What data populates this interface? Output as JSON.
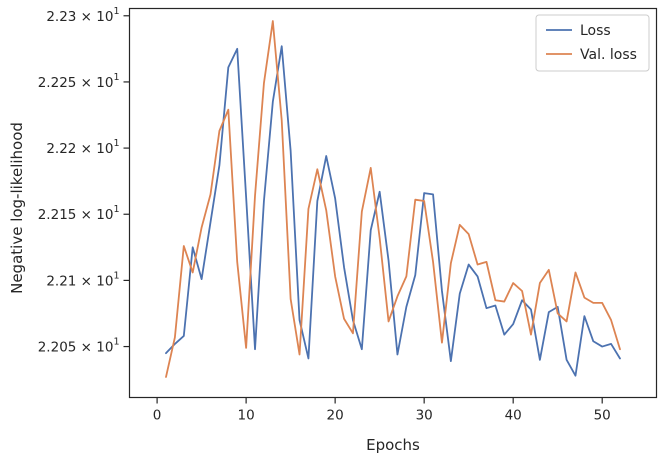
{
  "chart_data": {
    "type": "line",
    "title": "",
    "xlabel": "Epochs",
    "ylabel": "Negative log-likelihood",
    "xlim": [
      -3.1,
      56.1
    ],
    "ylim": [
      22.0115,
      22.3055
    ],
    "x_ticks": [
      {
        "value": 0,
        "label": "0"
      },
      {
        "value": 10,
        "label": "10"
      },
      {
        "value": 20,
        "label": "20"
      },
      {
        "value": 30,
        "label": "30"
      },
      {
        "value": 40,
        "label": "40"
      },
      {
        "value": 50,
        "label": "50"
      }
    ],
    "y_ticks": [
      {
        "value": 22.05,
        "mantissa": "2.205",
        "exponent": "1"
      },
      {
        "value": 22.1,
        "mantissa": "2.21",
        "exponent": "1"
      },
      {
        "value": 22.15,
        "mantissa": "2.215",
        "exponent": "1"
      },
      {
        "value": 22.2,
        "mantissa": "2.22",
        "exponent": "1"
      },
      {
        "value": 22.25,
        "mantissa": "2.225",
        "exponent": "1"
      },
      {
        "value": 22.3,
        "mantissa": "2.23",
        "exponent": "1"
      }
    ],
    "times_sign": "×",
    "grid": false,
    "legend_position": "top-right",
    "x": [
      1,
      2,
      3,
      4,
      5,
      6,
      7,
      8,
      9,
      10,
      11,
      12,
      13,
      14,
      15,
      16,
      17,
      18,
      19,
      20,
      21,
      22,
      23,
      24,
      25,
      26,
      27,
      28,
      29,
      30,
      31,
      32,
      33,
      34,
      35,
      36,
      37,
      38,
      39,
      40,
      41,
      42,
      43,
      44,
      45,
      46,
      47,
      48,
      49,
      50,
      51,
      52
    ],
    "series": [
      {
        "name": "Loss",
        "color": "#4c72b0",
        "values": [
          22.045,
          22.052,
          22.058,
          22.125,
          22.101,
          22.144,
          22.187,
          22.261,
          22.275,
          22.163,
          22.048,
          22.16,
          22.235,
          22.277,
          22.198,
          22.07,
          22.041,
          22.16,
          22.194,
          22.162,
          22.11,
          22.07,
          22.048,
          22.138,
          22.167,
          22.115,
          22.044,
          22.08,
          22.104,
          22.166,
          22.165,
          22.092,
          22.039,
          22.09,
          22.112,
          22.103,
          22.079,
          22.081,
          22.059,
          22.067,
          22.085,
          22.078,
          22.04,
          22.076,
          22.08,
          22.04,
          22.028,
          22.073,
          22.054,
          22.05,
          22.052,
          22.041
        ]
      },
      {
        "name": "Val. loss",
        "color": "#dd8452",
        "values": [
          22.027,
          22.057,
          22.126,
          22.106,
          22.14,
          22.165,
          22.213,
          22.229,
          22.114,
          22.049,
          22.164,
          22.249,
          22.296,
          22.221,
          22.086,
          22.044,
          22.154,
          22.184,
          22.153,
          22.103,
          22.071,
          22.06,
          22.152,
          22.185,
          22.132,
          22.069,
          22.088,
          22.103,
          22.161,
          22.16,
          22.114,
          22.053,
          22.113,
          22.142,
          22.135,
          22.112,
          22.114,
          22.085,
          22.084,
          22.098,
          22.092,
          22.059,
          22.098,
          22.108,
          22.075,
          22.069,
          22.106,
          22.087,
          22.083,
          22.083,
          22.07,
          22.048
        ]
      }
    ]
  }
}
